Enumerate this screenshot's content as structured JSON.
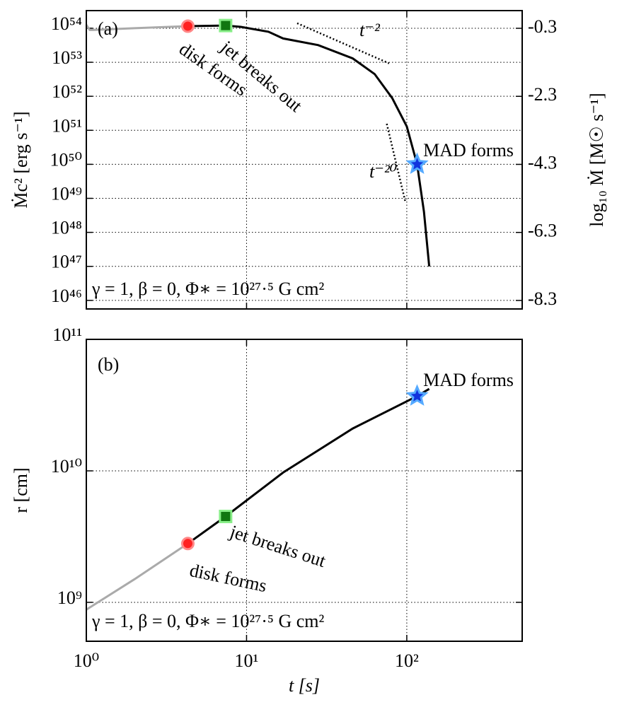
{
  "chart_data": [
    {
      "type": "line",
      "panel_label": "(a)",
      "parameters": "γ = 1,  β = 0,  Φ∗ = 10²⁷·⁵ G cm²",
      "y_label": "Ṁc² [erg s⁻¹]",
      "y2_label": "log₁₀ Ṁ [M☉ s⁻¹]",
      "x_scale": "log",
      "y_scale": "log",
      "grid": true,
      "xlim": [
        1,
        525
      ],
      "xticks": [
        1,
        10,
        100
      ],
      "ylim": [
        5.6e+45,
        3.3e+54
      ],
      "yticks": [
        {
          "value": 1e+46,
          "label": "10⁴⁶"
        },
        {
          "value": 1e+47,
          "label": "10⁴⁷"
        },
        {
          "value": 1e+48,
          "label": "10⁴⁸"
        },
        {
          "value": 1e+49,
          "label": "10⁴⁹"
        },
        {
          "value": 1e+50,
          "label": "10⁵⁰"
        },
        {
          "value": 1e+51,
          "label": "10⁵¹"
        },
        {
          "value": 1e+52,
          "label": "10⁵²"
        },
        {
          "value": 1e+53,
          "label": "10⁵³"
        },
        {
          "value": 1e+54,
          "label": "10⁵⁴"
        }
      ],
      "y2lim": [
        -8.55,
        0.22
      ],
      "y2ticks": [
        -8.3,
        -6.3,
        -4.3,
        -2.3,
        -0.3
      ],
      "series": [
        {
          "color": "#aaaaaa",
          "x": [
            1,
            1.05,
            1.1,
            2,
            4.3
          ],
          "values": [
            1.26e+54,
            8.9e+53,
            8.9e+53,
            1e+54,
            1.15e+54
          ]
        },
        {
          "color": "#000000",
          "x": [
            4.3,
            7.4,
            9.2,
            13.7,
            16.9,
            28,
            46,
            63,
            81,
            100,
            116,
            128,
            138
          ],
          "values": [
            1.15e+54,
            1.2e+54,
            1.1e+54,
            7.9e+53,
            5e+53,
            3.2e+53,
            1.3e+53,
            4.5e+52,
            8.9e+51,
            1.3e+51,
            1e+50,
            4e+48,
            1e+47
          ]
        }
      ],
      "guides": [
        {
          "label": "t⁻²",
          "x": [
            20.7,
            77.5
          ],
          "values": [
            1.4e+54,
            9.3e+52
          ]
        },
        {
          "label": "t⁻²⁰",
          "x": [
            75,
            98.3
          ],
          "values": [
            1.55e+51,
            7.4e+48
          ]
        }
      ],
      "markers": [
        {
          "label": "disk forms",
          "shape": "circle",
          "color": "#ff2222",
          "x": 4.3,
          "value": 1.15e+54
        },
        {
          "label": "jet breaks out",
          "shape": "square",
          "color": "#117711",
          "x": 7.4,
          "value": 1.2e+54
        },
        {
          "label": "MAD forms",
          "shape": "star",
          "color": "#1133dd",
          "x": 116,
          "value": 1e+50
        }
      ]
    },
    {
      "type": "line",
      "panel_label": "(b)",
      "parameters": "γ = 1,  β = 0,  Φ∗ = 10²⁷·⁵ G cm²",
      "y_label": "r [cm]",
      "x_label": "t [s]",
      "x_scale": "log",
      "y_scale": "log",
      "grid": true,
      "xlim": [
        1,
        525
      ],
      "xticks": [
        {
          "value": 1,
          "label": "10⁰"
        },
        {
          "value": 10,
          "label": "10¹"
        },
        {
          "value": 100,
          "label": "10²"
        }
      ],
      "ylim": [
        506000000.0,
        100000000000.0
      ],
      "yticks": [
        {
          "value": 1000000000.0,
          "label": "10⁹"
        },
        {
          "value": 10000000000.0,
          "label": "10¹⁰"
        },
        {
          "value": 100000000000.0,
          "label": "10¹¹"
        }
      ],
      "series": [
        {
          "color": "#aaaaaa",
          "x": [
            1,
            2,
            4.3
          ],
          "values": [
            880000000.0,
            1500000000.0,
            2800000000.0
          ]
        },
        {
          "color": "#000000",
          "x": [
            4.3,
            7.4,
            16.9,
            46,
            116,
            138
          ],
          "values": [
            2800000000.0,
            4500000000.0,
            9700000000.0,
            21000000000.0,
            37000000000.0,
            42000000000.0
          ]
        }
      ],
      "markers": [
        {
          "label": "disk forms",
          "shape": "circle",
          "color": "#ff2222",
          "x": 4.3,
          "value": 2800000000.0
        },
        {
          "label": "jet breaks out",
          "shape": "square",
          "color": "#117711",
          "x": 7.4,
          "value": 4500000000.0
        },
        {
          "label": "MAD forms",
          "shape": "star",
          "color": "#1133dd",
          "x": 116,
          "value": 37000000000.0
        }
      ]
    }
  ]
}
